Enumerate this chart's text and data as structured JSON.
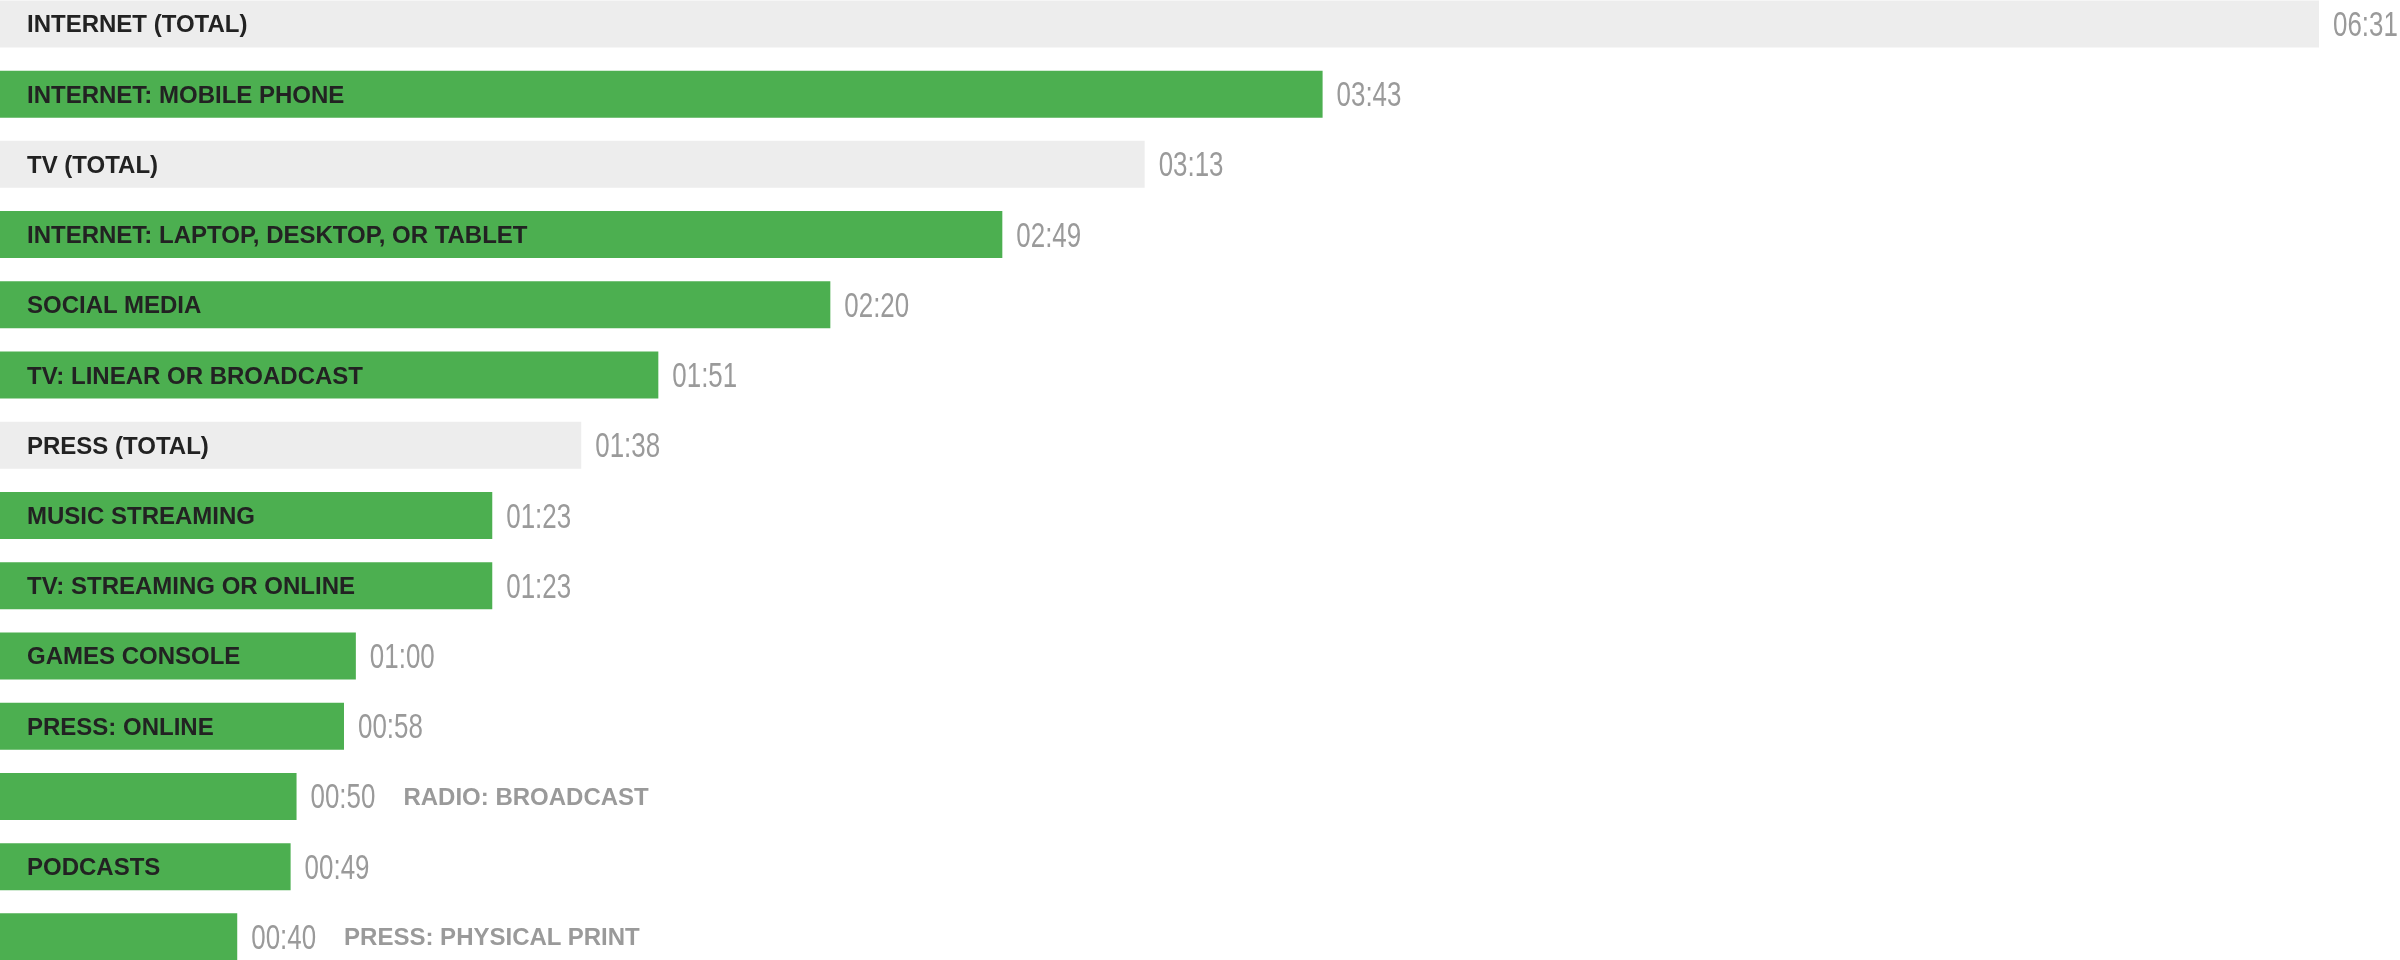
{
  "chart_data": {
    "type": "bar",
    "orientation": "horizontal",
    "categories": [
      "INTERNET (TOTAL)",
      "INTERNET: MOBILE PHONE",
      "TV (TOTAL)",
      "INTERNET: LAPTOP, DESKTOP, OR TABLET",
      "SOCIAL MEDIA",
      "TV: LINEAR OR BROADCAST",
      "PRESS (TOTAL)",
      "MUSIC STREAMING",
      "TV: STREAMING OR ONLINE",
      "GAMES CONSOLE",
      "PRESS: ONLINE",
      "RADIO: BROADCAST",
      "PODCASTS",
      "PRESS: PHYSICAL PRINT"
    ],
    "values": [
      391,
      223,
      193,
      169,
      140,
      111,
      98,
      83,
      83,
      60,
      58,
      50,
      49,
      40
    ],
    "colors": [
      "#ededed",
      "#4caf50",
      "#ededed",
      "#4caf50",
      "#4caf50",
      "#4caf50",
      "#ededed",
      "#4caf50",
      "#4caf50",
      "#4caf50",
      "#4caf50",
      "#4caf50",
      "#4caf50",
      "#4caf50"
    ],
    "value_labels": [
      "06:31",
      "03:43",
      "03:13",
      "02:49",
      "02:20",
      "01:51",
      "01:38",
      "01:23",
      "01:23",
      "01:00",
      "00:58",
      "00:50",
      "00:49",
      "00:40"
    ]
  }
}
